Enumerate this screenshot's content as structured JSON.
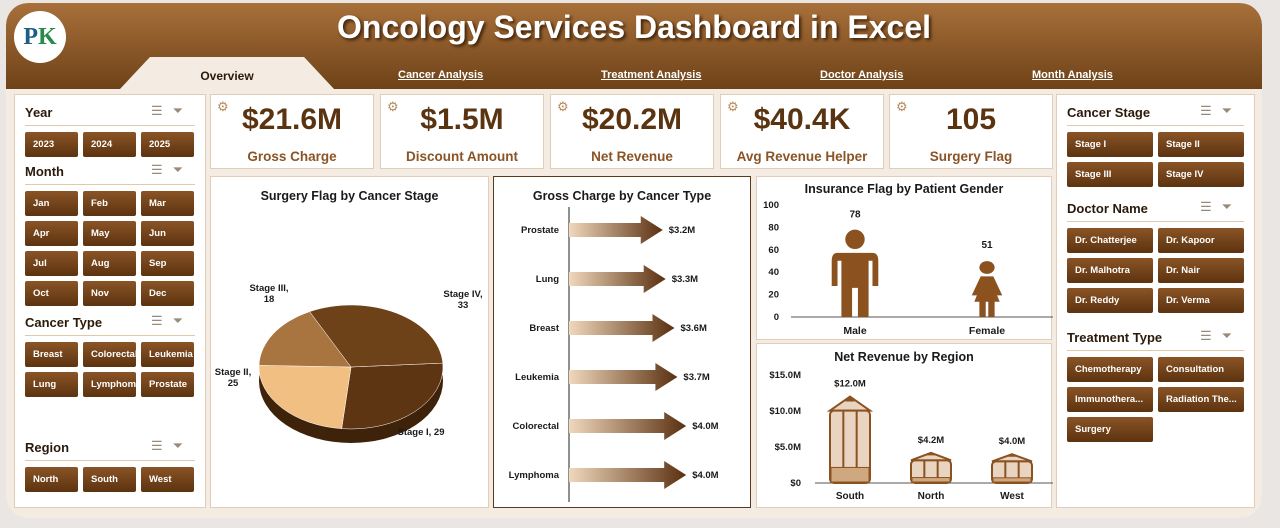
{
  "header": {
    "title": "Oncology Services Dashboard in Excel",
    "logo": "PK",
    "tabs": [
      "Overview",
      "Cancer Analysis",
      "Treatment Analysis",
      "Doctor Analysis",
      "Month Analysis"
    ]
  },
  "slicers_left": [
    {
      "title": "Year",
      "items": [
        "2023",
        "2024",
        "2025"
      ]
    },
    {
      "title": "Month",
      "items": [
        "Jan",
        "Feb",
        "Mar",
        "Apr",
        "May",
        "Jun",
        "Jul",
        "Aug",
        "Sep",
        "Oct",
        "Nov",
        "Dec"
      ]
    },
    {
      "title": "Cancer Type",
      "items": [
        "Breast",
        "Colorectal",
        "Leukemia",
        "Lung",
        "Lymphoma",
        "Prostate"
      ]
    },
    {
      "title": "Region",
      "items": [
        "North",
        "South",
        "West"
      ]
    }
  ],
  "slicers_right": [
    {
      "title": "Cancer Stage",
      "items": [
        "Stage I",
        "Stage II",
        "Stage III",
        "Stage IV"
      ]
    },
    {
      "title": "Doctor Name",
      "items": [
        "Dr. Chatterjee",
        "Dr. Kapoor",
        "Dr. Malhotra",
        "Dr. Nair",
        "Dr. Reddy",
        "Dr. Verma"
      ]
    },
    {
      "title": "Treatment Type",
      "items": [
        "Chemotherapy",
        "Consultation",
        "Immunothera...",
        "Radiation The...",
        "Surgery"
      ]
    }
  ],
  "kpis": [
    {
      "value": "$21.6M",
      "label": "Gross Charge",
      "icon": "coins-gear-icon"
    },
    {
      "value": "$1.5M",
      "label": "Discount Amount",
      "icon": "hand-money-icon"
    },
    {
      "value": "$20.2M",
      "label": "Net Revenue",
      "icon": "hands-dollar-icon"
    },
    {
      "value": "$40.4K",
      "label": "Avg Revenue Helper",
      "icon": "money-bag-icon"
    },
    {
      "value": "105",
      "label": "Surgery Flag",
      "icon": "surgery-icon"
    }
  ],
  "colors": {
    "brand": "#7a4a1e",
    "dark": "#5c3310",
    "light": "#f4ebe2"
  },
  "chart_data": [
    {
      "type": "pie",
      "title": "Surgery Flag by Cancer Stage",
      "categories": [
        "Stage I",
        "Stage II",
        "Stage III",
        "Stage IV"
      ],
      "values": [
        29,
        25,
        18,
        33
      ],
      "labels": [
        "Stage I, 29",
        "Stage II, 25",
        "Stage III, 18",
        "Stage IV, 33"
      ]
    },
    {
      "type": "bar",
      "title": "Gross Charge by Cancer Type",
      "categories": [
        "Prostate",
        "Lung",
        "Breast",
        "Leukemia",
        "Colorectal",
        "Lymphoma"
      ],
      "values": [
        3.2,
        3.3,
        3.6,
        3.7,
        4.0,
        4.0
      ],
      "labels": [
        "$3.2M",
        "$3.3M",
        "$3.6M",
        "$3.7M",
        "$4.0M",
        "$4.0M"
      ],
      "orientation": "horizontal"
    },
    {
      "type": "bar",
      "title": "Insurance Flag by Patient Gender",
      "categories": [
        "Male",
        "Female"
      ],
      "values": [
        78,
        51
      ],
      "ylim": [
        0,
        100
      ],
      "yticks": [
        "0",
        "20",
        "40",
        "60",
        "80",
        "100"
      ]
    },
    {
      "type": "bar",
      "title": "Net Revenue by Region",
      "categories": [
        "South",
        "North",
        "West"
      ],
      "values": [
        12.0,
        4.2,
        4.0
      ],
      "labels": [
        "$12.0M",
        "$4.2M",
        "$4.0M"
      ],
      "ylim": [
        0,
        15
      ],
      "yticks": [
        "$0",
        "$5.0M",
        "$10.0M",
        "$15.0M"
      ]
    }
  ]
}
